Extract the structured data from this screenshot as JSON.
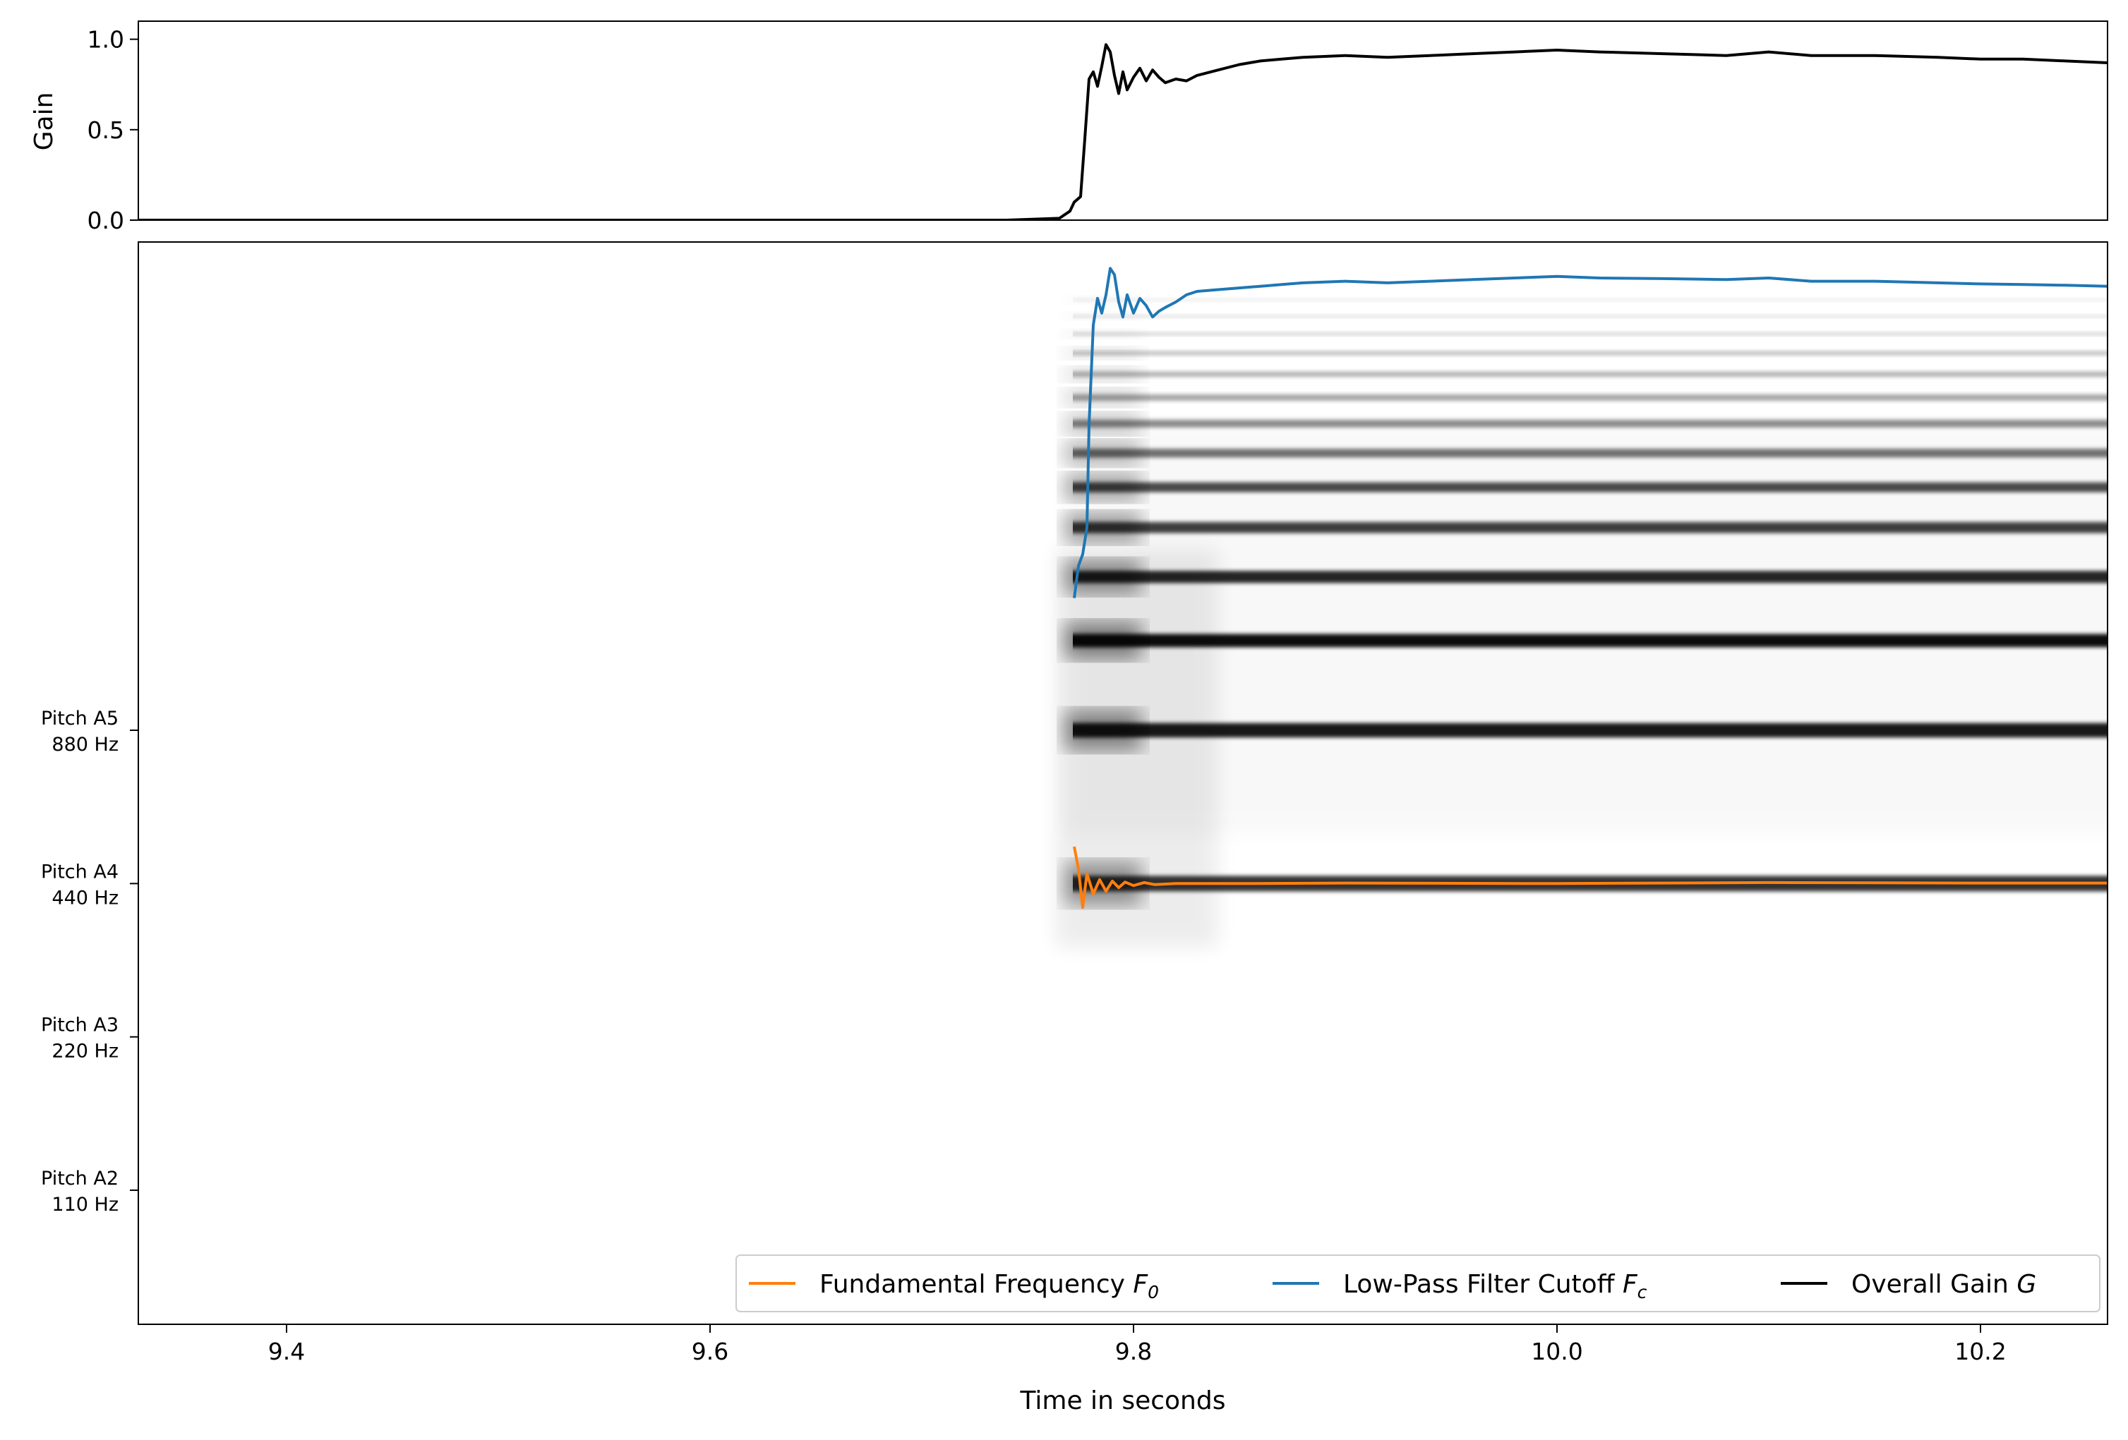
{
  "chart_data": [
    {
      "type": "line",
      "panel": "gain",
      "ylabel": "Gain",
      "ylim": [
        0.0,
        1.1
      ],
      "xlim": [
        9.33,
        10.26
      ],
      "yticks": [
        {
          "value": 0.0,
          "label": "0.0"
        },
        {
          "value": 0.5,
          "label": "0.5"
        },
        {
          "value": 1.0,
          "label": "1.0"
        }
      ],
      "series": [
        {
          "name": "Overall Gain G",
          "color": "#000000",
          "x": [
            9.33,
            9.74,
            9.765,
            9.77,
            9.772,
            9.775,
            9.777,
            9.779,
            9.781,
            9.783,
            9.785,
            9.787,
            9.789,
            9.791,
            9.793,
            9.795,
            9.797,
            9.8,
            9.803,
            9.806,
            9.809,
            9.812,
            9.815,
            9.82,
            9.825,
            9.83,
            9.84,
            9.85,
            9.86,
            9.87,
            9.88,
            9.9,
            9.92,
            9.94,
            9.96,
            9.98,
            10.0,
            10.02,
            10.05,
            10.08,
            10.1,
            10.12,
            10.15,
            10.18,
            10.2,
            10.22,
            10.24,
            10.26
          ],
          "y": [
            0.0,
            0.0,
            0.01,
            0.05,
            0.1,
            0.13,
            0.45,
            0.78,
            0.82,
            0.74,
            0.85,
            0.97,
            0.93,
            0.8,
            0.7,
            0.82,
            0.72,
            0.79,
            0.84,
            0.77,
            0.83,
            0.79,
            0.76,
            0.78,
            0.77,
            0.8,
            0.83,
            0.86,
            0.88,
            0.89,
            0.9,
            0.91,
            0.9,
            0.91,
            0.92,
            0.93,
            0.94,
            0.93,
            0.92,
            0.91,
            0.93,
            0.91,
            0.91,
            0.9,
            0.89,
            0.89,
            0.88,
            0.87
          ]
        }
      ]
    },
    {
      "type": "heatmap",
      "panel": "spectrogram",
      "xlabel": "Time in seconds",
      "xlim": [
        9.33,
        10.26
      ],
      "ylog": true,
      "ylim_hz": [
        60,
        8000
      ],
      "xticks": [
        {
          "value": 9.4,
          "label": "9.4"
        },
        {
          "value": 9.6,
          "label": "9.6"
        },
        {
          "value": 9.8,
          "label": "9.8"
        },
        {
          "value": 10.0,
          "label": "10.0"
        },
        {
          "value": 10.2,
          "label": "10.2"
        }
      ],
      "yticks": [
        {
          "value": 880,
          "label1": "Pitch A5",
          "label2": "880 Hz"
        },
        {
          "value": 440,
          "label1": "Pitch A4",
          "label2": "440 Hz"
        },
        {
          "value": 220,
          "label1": "Pitch A3",
          "label2": "220 Hz"
        },
        {
          "value": 110,
          "label1": "Pitch A2",
          "label2": "110 Hz"
        }
      ],
      "note_onset": 9.77,
      "harmonics": [
        {
          "freq": 440,
          "intensity": 0.8
        },
        {
          "freq": 880,
          "intensity": 0.9
        },
        {
          "freq": 1320,
          "intensity": 0.95
        },
        {
          "freq": 1760,
          "intensity": 0.85
        },
        {
          "freq": 2200,
          "intensity": 0.75
        },
        {
          "freq": 2640,
          "intensity": 0.7
        },
        {
          "freq": 3080,
          "intensity": 0.55
        },
        {
          "freq": 3520,
          "intensity": 0.45
        },
        {
          "freq": 3960,
          "intensity": 0.35
        },
        {
          "freq": 4400,
          "intensity": 0.3
        },
        {
          "freq": 4840,
          "intensity": 0.25
        },
        {
          "freq": 5280,
          "intensity": 0.18
        },
        {
          "freq": 5720,
          "intensity": 0.12
        },
        {
          "freq": 6160,
          "intensity": 0.08
        }
      ],
      "series": [
        {
          "name": "Fundamental Frequency F0",
          "color": "#ff7f0e",
          "x": [
            9.772,
            9.774,
            9.776,
            9.778,
            9.781,
            9.784,
            9.787,
            9.79,
            9.793,
            9.796,
            9.8,
            9.805,
            9.81,
            9.82,
            9.85,
            9.9,
            10.0,
            10.1,
            10.2,
            10.26
          ],
          "y_hz": [
            520,
            470,
            395,
            460,
            420,
            448,
            425,
            445,
            432,
            443,
            436,
            442,
            438,
            440,
            440,
            441,
            440,
            442,
            441,
            441
          ]
        },
        {
          "name": "Low-Pass Filter Cutoff Fc",
          "color": "#1f77b4",
          "x": [
            9.772,
            9.774,
            9.776,
            9.778,
            9.779,
            9.781,
            9.783,
            9.785,
            9.787,
            9.789,
            9.791,
            9.793,
            9.795,
            9.797,
            9.8,
            9.803,
            9.806,
            9.809,
            9.812,
            9.815,
            9.82,
            9.825,
            9.83,
            9.84,
            9.85,
            9.86,
            9.87,
            9.88,
            9.9,
            9.92,
            9.94,
            9.96,
            9.98,
            10.0,
            10.02,
            10.05,
            10.08,
            10.1,
            10.12,
            10.15,
            10.18,
            10.2,
            10.22,
            10.24,
            10.26
          ],
          "y_hz": [
            1600,
            1850,
            1950,
            2200,
            3500,
            5500,
            6200,
            5800,
            6300,
            7100,
            6900,
            6100,
            5700,
            6300,
            5800,
            6200,
            6000,
            5700,
            5850,
            5950,
            6100,
            6300,
            6400,
            6450,
            6500,
            6550,
            6600,
            6650,
            6700,
            6650,
            6700,
            6750,
            6800,
            6850,
            6800,
            6780,
            6750,
            6800,
            6700,
            6700,
            6650,
            6620,
            6600,
            6580,
            6550
          ]
        }
      ],
      "legend": {
        "placement": "lower-right",
        "ncol": 3,
        "entries": [
          {
            "label": "Fundamental Frequency ",
            "sym": "F",
            "sub": "0",
            "color": "#ff7f0e"
          },
          {
            "label": "Low-Pass Filter Cutoff ",
            "sym": "F",
            "sub": "c",
            "color": "#1f77b4"
          },
          {
            "label": "Overall Gain ",
            "sym": "G",
            "sub": "",
            "color": "#000000"
          }
        ]
      }
    }
  ]
}
